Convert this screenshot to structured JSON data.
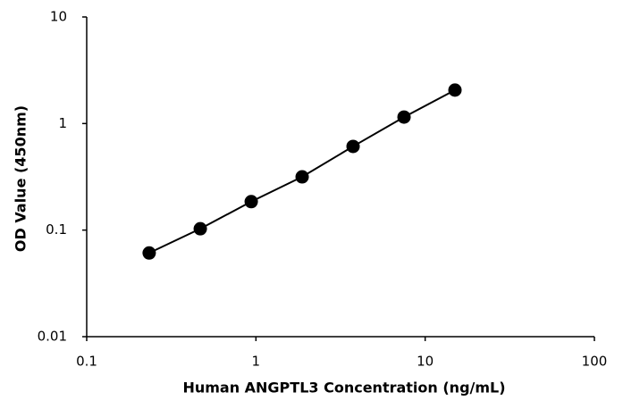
{
  "chart_data": {
    "type": "line",
    "x_label": "Human ANGPTL3 Concentration (ng/mL)",
    "y_label": "OD Value (450nm)",
    "x": [
      0.234,
      0.469,
      0.938,
      1.875,
      3.75,
      7.5,
      15
    ],
    "series": [
      {
        "color": "#000000",
        "values": [
          0.061,
          0.103,
          0.185,
          0.316,
          0.61,
          1.15,
          2.06
        ]
      }
    ],
    "xlim": [
      0.1,
      100
    ],
    "xticks": [
      0.1,
      1,
      10,
      100
    ],
    "ylim": [
      0.01,
      10
    ],
    "yticks": [
      0.01,
      0.1,
      1,
      10
    ],
    "xscale": "log",
    "yscale": "log",
    "markers": true,
    "grid": false
  }
}
